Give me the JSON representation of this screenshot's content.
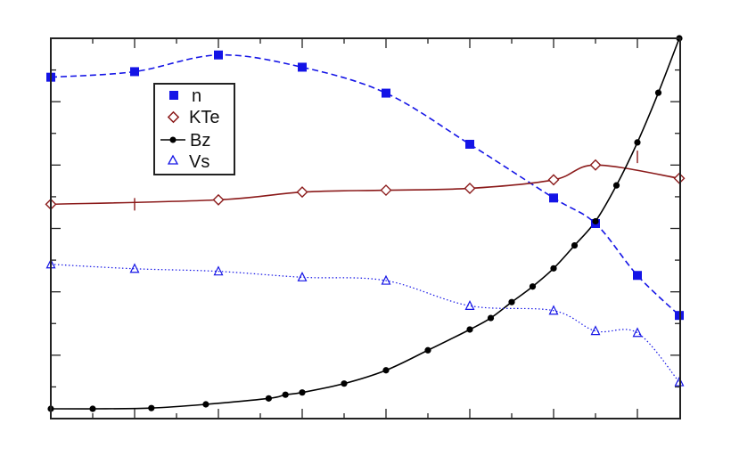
{
  "chart_data": {
    "type": "line",
    "title": "",
    "xlabel": "",
    "ylabel": "",
    "xlim": [
      0,
      15
    ],
    "ylim": [
      0,
      1
    ],
    "grid": false,
    "legend_position": "top-left",
    "series": [
      {
        "name": "n",
        "marker": "square-filled",
        "line": "dashed",
        "color": "#1414e6",
        "x": [
          0,
          2,
          4,
          6,
          8,
          10,
          12,
          13,
          14,
          15
        ],
        "y": [
          0.895,
          0.91,
          0.955,
          0.922,
          0.852,
          0.714,
          0.569,
          0.5,
          0.36,
          0.252
        ]
      },
      {
        "name": "KTe",
        "marker": "diamond-open",
        "line": "solid",
        "color": "#8b1a1a",
        "x": [
          0,
          4,
          6,
          8,
          10,
          12,
          13,
          15
        ],
        "y": [
          0.552,
          0.564,
          0.585,
          0.59,
          0.595,
          0.618,
          0.658,
          0.622
        ]
      },
      {
        "name": "Bz",
        "marker": "circle-filled",
        "line": "solid",
        "color": "#000000",
        "x": [
          0,
          1,
          2.4,
          3.7,
          5.2,
          5.6,
          6,
          7,
          8,
          9,
          10,
          10.5,
          11,
          11.5,
          12,
          12.5,
          13,
          13.5,
          14,
          14.5,
          15
        ],
        "y": [
          0.0,
          0.0,
          0.002,
          0.012,
          0.028,
          0.038,
          0.044,
          0.068,
          0.104,
          0.158,
          0.214,
          0.245,
          0.288,
          0.33,
          0.379,
          0.441,
          0.506,
          0.603,
          0.719,
          0.853,
          1.0
        ]
      },
      {
        "name": "Vs",
        "marker": "triangle-open",
        "line": "dotted",
        "color": "#1414e6",
        "x": [
          0,
          2,
          4,
          6,
          8,
          10,
          12,
          13,
          14,
          15
        ],
        "y": [
          0.39,
          0.378,
          0.371,
          0.355,
          0.346,
          0.278,
          0.265,
          0.21,
          0.205,
          0.072
        ]
      }
    ],
    "legend": [
      "n",
      "KTe",
      "Bz",
      "Vs"
    ]
  }
}
